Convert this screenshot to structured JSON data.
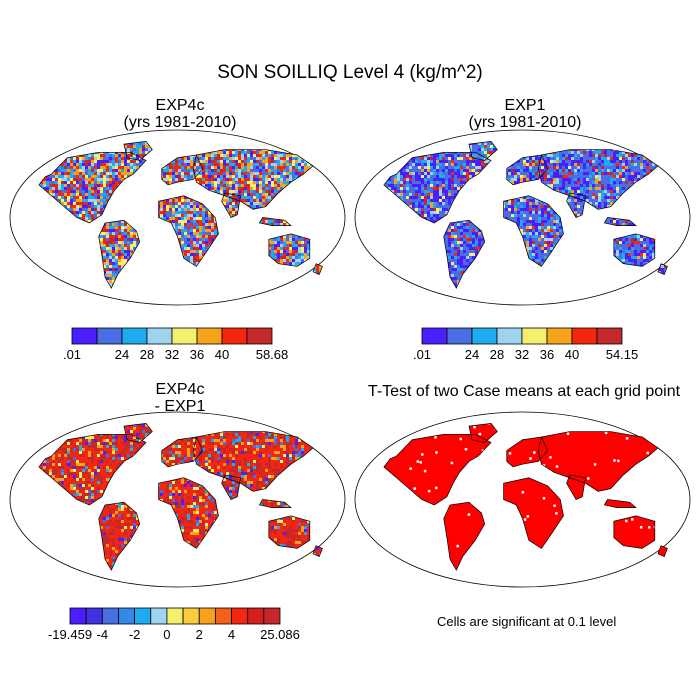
{
  "figure": {
    "title": "SON SOILLIQ Level 4 (kg/m^2)",
    "footnote": "Cells are significant at 0.1 level"
  },
  "colors": {
    "land_outline": "#000000",
    "ocean": "#ffffff",
    "significant": "#ff0000"
  },
  "chart_data": [
    {
      "type": "map",
      "name": "panel-exp4c",
      "title_line1": "EXP4c",
      "title_line2": "(yrs 1981-2010)",
      "dominant_pattern": "mixed",
      "colorbar": {
        "colors": [
          "#4b1eff",
          "#4a6fe3",
          "#1eacf0",
          "#9ed4f0",
          "#f5ef6e",
          "#f7a21b",
          "#f5260f",
          "#c4282a"
        ],
        "labels": [
          ".01",
          "",
          "24",
          "28",
          "32",
          "36",
          "40",
          "58.68"
        ]
      }
    },
    {
      "type": "map",
      "name": "panel-exp1",
      "title_line1": "EXP1",
      "title_line2": "(yrs 1981-2010)",
      "dominant_pattern": "wet-blue",
      "colorbar": {
        "colors": [
          "#4b1eff",
          "#4a6fe3",
          "#1eacf0",
          "#9ed4f0",
          "#f5ef6e",
          "#f7a21b",
          "#f5260f",
          "#c4282a"
        ],
        "labels": [
          ".01",
          "",
          "24",
          "28",
          "32",
          "36",
          "40",
          "54.15"
        ]
      }
    },
    {
      "type": "map",
      "name": "panel-diff",
      "title_line1": "EXP4c",
      "title_line2": "- EXP1",
      "dominant_pattern": "positive-red",
      "colorbar": {
        "colors": [
          "#4b1eff",
          "#3f32e0",
          "#4a6fe3",
          "#3387e8",
          "#1eacf0",
          "#9ed4f0",
          "#f5ef6e",
          "#f8cc3c",
          "#f7a21b",
          "#f5601a",
          "#f5260f",
          "#d41f1f",
          "#c4282a"
        ],
        "labels": [
          "-19.459",
          "",
          "-4",
          "",
          "-2",
          "",
          "0",
          "",
          "2",
          "",
          "4",
          "",
          "25.086"
        ]
      }
    },
    {
      "type": "map",
      "name": "panel-ttest",
      "title_line1": "T-Test of two Case means at each grid point",
      "title_line2": "",
      "dominant_pattern": "significant"
    }
  ]
}
